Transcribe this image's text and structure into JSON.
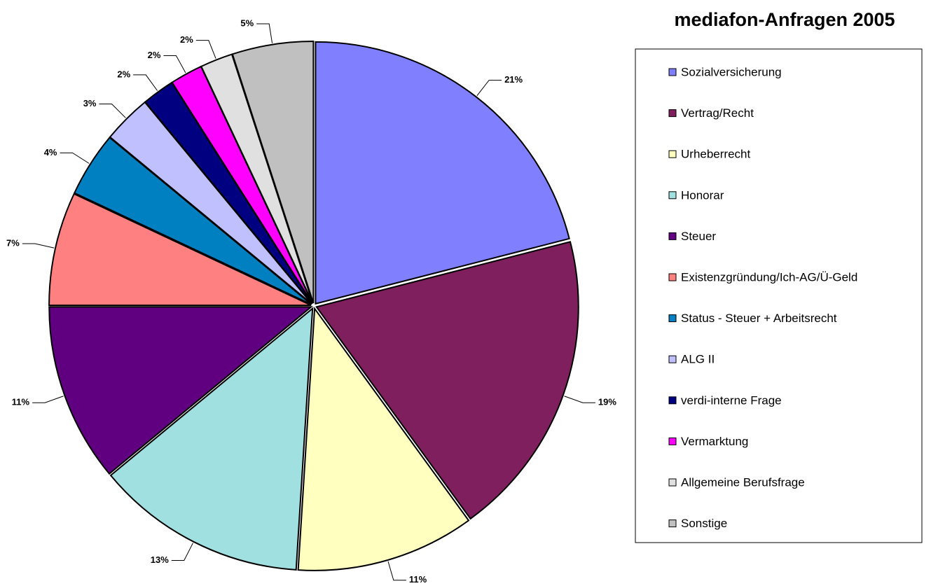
{
  "chart_data": {
    "type": "pie",
    "title": "mediafon-Anfragen 2005",
    "categories": [
      "Sozialversicherung",
      "Vertrag/Recht",
      "Urheberrecht",
      "Honorar",
      "Steuer",
      "Existenzgründung/Ich-AG/Ü-Geld",
      "Status - Steuer + Arbeitsrecht",
      "ALG II",
      "verdi-interne Frage",
      "Vermarktung",
      "Allgemeine Berufsfrage",
      "Sonstige"
    ],
    "values": [
      21,
      19,
      11,
      13,
      11,
      7,
      4,
      3,
      2,
      2,
      2,
      5
    ],
    "value_labels": [
      "21%",
      "19%",
      "11%",
      "13%",
      "11%",
      "7%",
      "4%",
      "3%",
      "2%",
      "2%",
      "2%",
      "5%"
    ],
    "colors": [
      "#8080ff",
      "#7f1f5e",
      "#ffffc0",
      "#a0e0e0",
      "#600080",
      "#ff8080",
      "#0080c0",
      "#c0c0ff",
      "#000080",
      "#ff00ff",
      "#e0e0e0",
      "#c0c0c0"
    ],
    "legend": "right"
  }
}
